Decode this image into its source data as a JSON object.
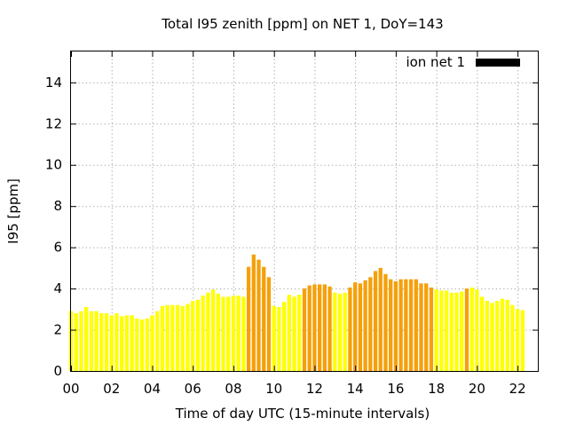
{
  "chart_data": {
    "type": "bar",
    "title": "Total I95 zenith [ppm] on NET 1, DoY=143",
    "xlabel": "Time of day UTC (15-minute intervals)",
    "ylabel": "I95 [ppm]",
    "xlim": [
      0,
      23
    ],
    "ylim": [
      0,
      15.5
    ],
    "x_ticks": [
      "00",
      "02",
      "04",
      "06",
      "08",
      "10",
      "12",
      "14",
      "16",
      "18",
      "20",
      "22"
    ],
    "y_ticks": [
      "0",
      "2",
      "4",
      "6",
      "8",
      "10",
      "12",
      "14"
    ],
    "grid": true,
    "legend_position": "top-right",
    "series": [
      {
        "name": "ion net 1",
        "legend_color": "#000000",
        "interval_hours": 0.25,
        "values": [
          2.9,
          2.8,
          2.9,
          3.1,
          2.9,
          2.9,
          2.8,
          2.8,
          2.7,
          2.8,
          2.65,
          2.7,
          2.7,
          2.55,
          2.5,
          2.55,
          2.7,
          2.9,
          3.15,
          3.2,
          3.2,
          3.2,
          3.15,
          3.25,
          3.4,
          3.45,
          3.65,
          3.8,
          3.95,
          3.75,
          3.6,
          3.6,
          3.65,
          3.65,
          3.6,
          5.05,
          5.65,
          5.4,
          5.05,
          4.55,
          3.15,
          3.1,
          3.35,
          3.7,
          3.6,
          3.7,
          4.0,
          4.15,
          4.2,
          4.2,
          4.2,
          4.1,
          3.8,
          3.75,
          3.8,
          4.05,
          4.3,
          4.25,
          4.4,
          4.55,
          4.85,
          5.0,
          4.7,
          4.45,
          4.35,
          4.45,
          4.45,
          4.45,
          4.45,
          4.25,
          4.25,
          4.05,
          3.95,
          3.9,
          3.9,
          3.8,
          3.8,
          3.85,
          4.0,
          4.05,
          3.95,
          3.6,
          3.4,
          3.3,
          3.4,
          3.5,
          3.45,
          3.2,
          3.0,
          2.95
        ],
        "colors": [
          "#ffff00",
          "#ffff00",
          "#ffff00",
          "#ffff00",
          "#ffff00",
          "#ffff00",
          "#ffff00",
          "#ffff00",
          "#ffff00",
          "#ffff00",
          "#ffff00",
          "#ffff00",
          "#ffff00",
          "#ffff00",
          "#ffff00",
          "#ffff00",
          "#ffff00",
          "#ffff00",
          "#ffff00",
          "#ffff00",
          "#ffff00",
          "#ffff00",
          "#ffff00",
          "#ffff00",
          "#ffff00",
          "#ffff00",
          "#ffff00",
          "#ffff00",
          "#ffff00",
          "#ffff00",
          "#ffff00",
          "#ffff00",
          "#ffff00",
          "#ffff00",
          "#ffff00",
          "#f5a00a",
          "#f5a00a",
          "#f5a00a",
          "#f5a00a",
          "#f5a00a",
          "#ffff00",
          "#ffff00",
          "#ffff00",
          "#ffff00",
          "#ffff00",
          "#ffff00",
          "#f5a00a",
          "#f5a00a",
          "#f5a00a",
          "#f5a00a",
          "#f5a00a",
          "#f5a00a",
          "#ffff00",
          "#ffff00",
          "#ffff00",
          "#f5a00a",
          "#f5a00a",
          "#f5a00a",
          "#f5a00a",
          "#f5a00a",
          "#f5a00a",
          "#f5a00a",
          "#f5a00a",
          "#f5a00a",
          "#f5a00a",
          "#f5a00a",
          "#f5a00a",
          "#f5a00a",
          "#f5a00a",
          "#f5a00a",
          "#f5a00a",
          "#f5a00a",
          "#ffff00",
          "#ffff00",
          "#ffff00",
          "#ffff00",
          "#ffff00",
          "#ffff00",
          "#f5a00a",
          "#ffff00",
          "#ffff00",
          "#ffff00",
          "#ffff00",
          "#ffff00",
          "#ffff00",
          "#ffff00",
          "#ffff00",
          "#ffff00",
          "#ffff00",
          "#ffff00"
        ]
      }
    ]
  }
}
